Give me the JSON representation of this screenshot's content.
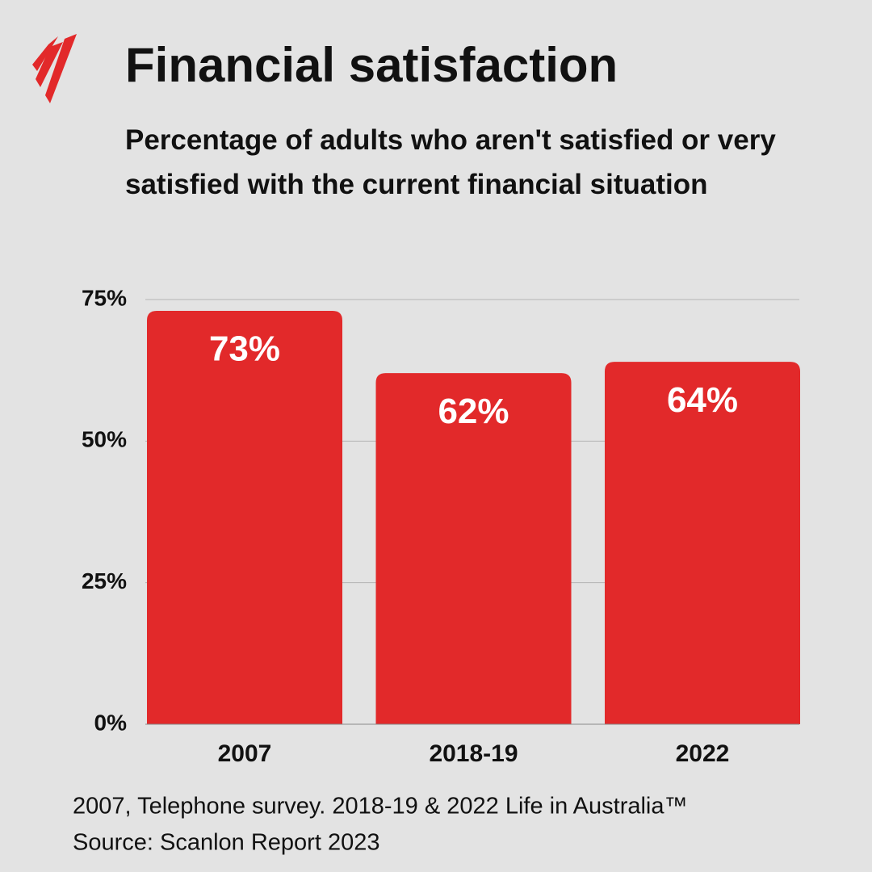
{
  "chart_data": {
    "type": "bar",
    "title": "Financial satisfaction",
    "subtitle": "Percentage of adults who aren't satisfied or very satisfied with the current financial situation",
    "categories": [
      "2007",
      "2018-19",
      "2022"
    ],
    "values": [
      73,
      62,
      64
    ],
    "value_labels": [
      "73%",
      "62%",
      "64%"
    ],
    "color": "#e2292a",
    "ylim": [
      0,
      75
    ],
    "yticks": [
      {
        "value": 0,
        "label": "0%"
      },
      {
        "value": 25,
        "label": "25%"
      },
      {
        "value": 50,
        "label": "50%"
      },
      {
        "value": 75,
        "label": "75%"
      }
    ],
    "grid": true,
    "notes": [
      "2007, Telephone survey. 2018-19 & 2022 Life in Australia™",
      "Source: Scanlon Report 2023"
    ]
  }
}
